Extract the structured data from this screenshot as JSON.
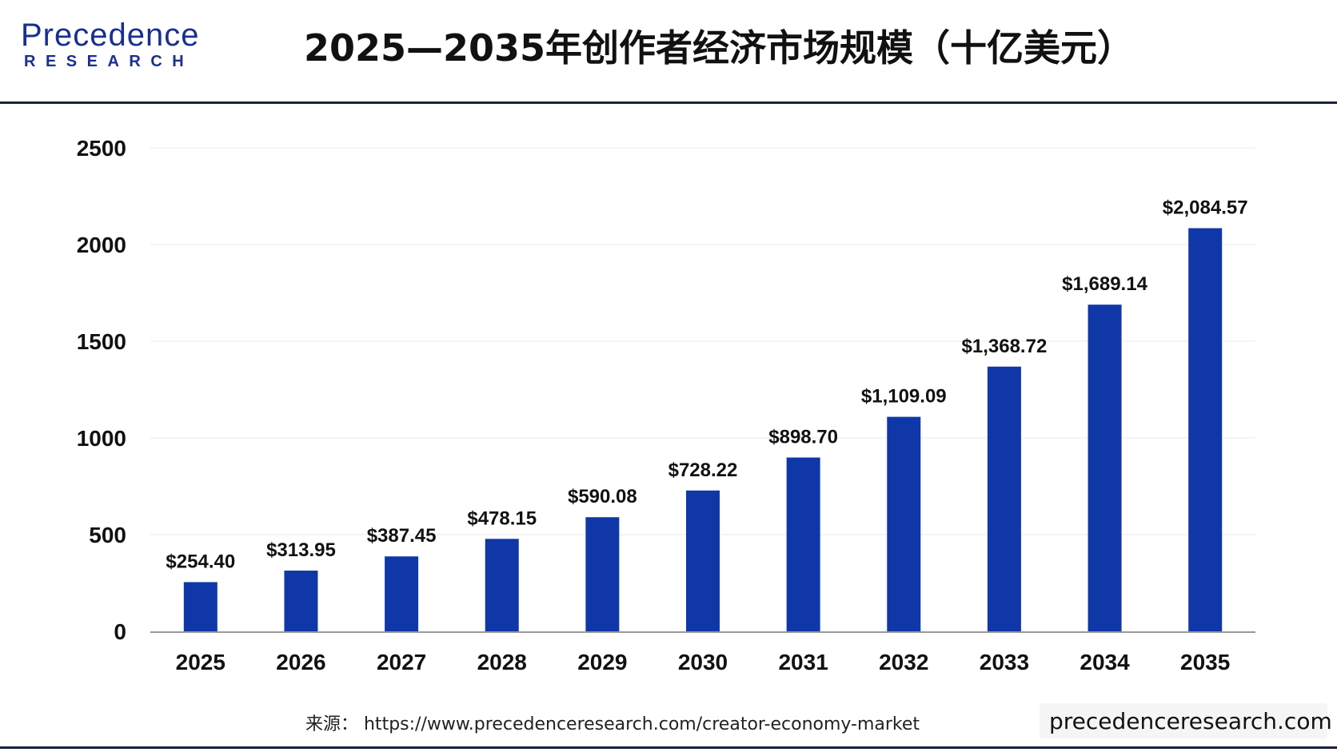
{
  "header": {
    "logo_top": "Precedence",
    "logo_bottom": "RESEARCH",
    "title": "2025—2035年创作者经济市场规模（十亿美元）"
  },
  "footer": {
    "source": "来源： https://www.precedenceresearch.com/creator-economy-market",
    "site": "precedenceresearch.com"
  },
  "colors": {
    "bar": "#0f37a8",
    "grid": "#e8e8e8",
    "axis": "#9a9a9a",
    "text": "#111111"
  },
  "chart_data": {
    "type": "bar",
    "title": "2025—2035年创作者经济市场规模（十亿美元）",
    "xlabel": "",
    "ylabel": "",
    "categories": [
      "2025",
      "2026",
      "2027",
      "2028",
      "2029",
      "2030",
      "2031",
      "2032",
      "2033",
      "2034",
      "2035"
    ],
    "values": [
      254.4,
      313.95,
      387.45,
      478.15,
      590.08,
      728.22,
      898.7,
      1109.09,
      1368.72,
      1689.14,
      2084.57
    ],
    "value_labels": [
      "$254.40",
      "$313.95",
      "$387.45",
      "$478.15",
      "$590.08",
      "$728.22",
      "$898.70",
      "$1,109.09",
      "$1,368.72",
      "$1,689.14",
      "$2,084.57"
    ],
    "ylim": [
      0,
      2500
    ],
    "yticks": [
      "0",
      "500",
      "1000",
      "1500",
      "2000",
      "2500"
    ],
    "grid": true,
    "legend": "none"
  }
}
